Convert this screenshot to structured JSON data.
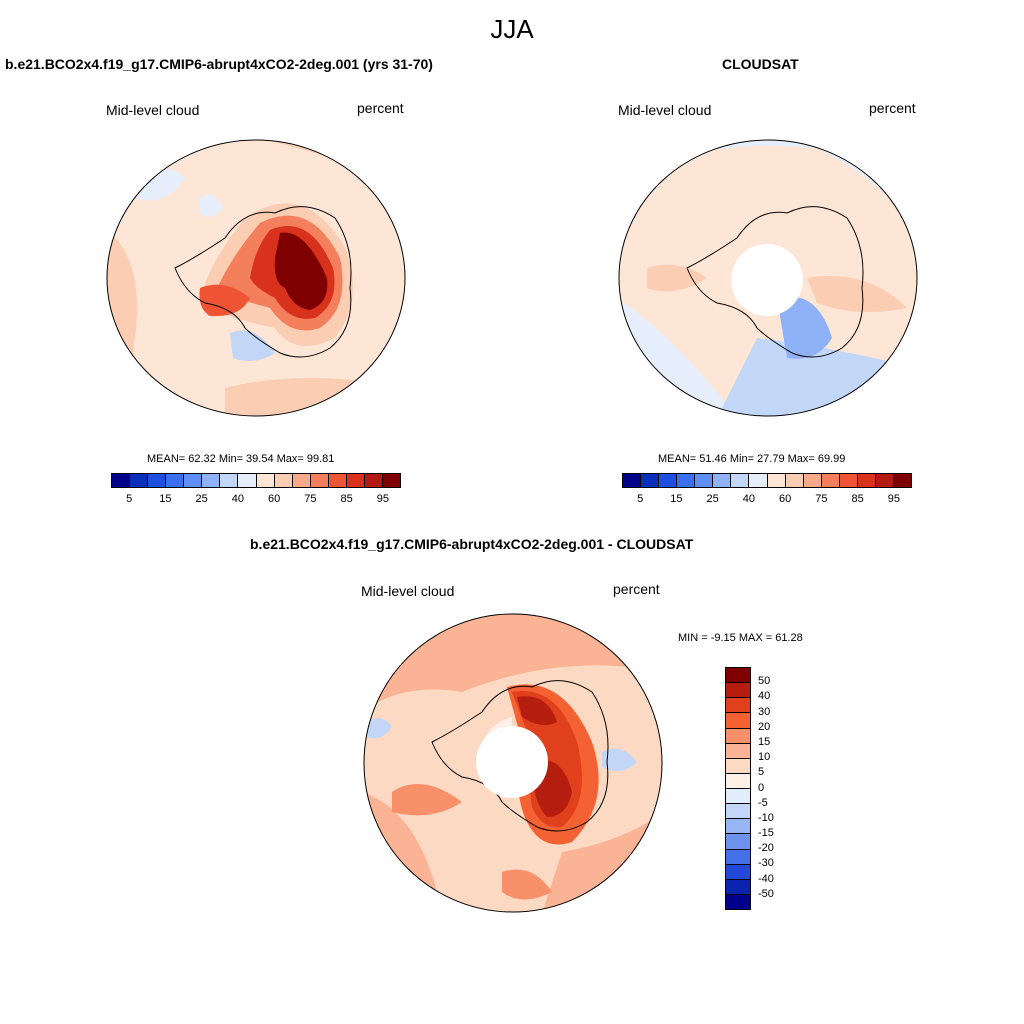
{
  "figure_title": "JJA",
  "panels": [
    {
      "title": "b.e21.BCO2x4.f19_g17.CMIP6-abrupt4xCO2-2deg.001 (yrs 31-70)",
      "variable": "Mid-level cloud",
      "units": "percent",
      "stats": "MEAN=  62.32  Min=  39.54  Max=  99.81",
      "colorbar_ticks": [
        "5",
        "15",
        "25",
        "40",
        "60",
        "75",
        "85",
        "95"
      ]
    },
    {
      "title": "CLOUDSAT",
      "variable": "Mid-level cloud",
      "units": "percent",
      "stats": "MEAN=  51.46  Min=  27.79  Max=  69.99",
      "colorbar_ticks": [
        "5",
        "15",
        "25",
        "40",
        "60",
        "75",
        "85",
        "95"
      ]
    },
    {
      "title": "b.e21.BCO2x4.f19_g17.CMIP6-abrupt4xCO2-2deg.001 - CLOUDSAT",
      "variable": "Mid-level cloud",
      "units": "percent",
      "stats": "MIN =  -9.15 MAX =  61.28",
      "colorbar_ticks": [
        "50",
        "40",
        "30",
        "20",
        "15",
        "10",
        "5",
        "0",
        "-5",
        "-10",
        "-15",
        "-20",
        "-30",
        "-40",
        "-50"
      ]
    }
  ],
  "colors": {
    "abs_scale": [
      "#00008b",
      "#0a2fb8",
      "#1f4fe0",
      "#3a6ff0",
      "#5f8ff5",
      "#8fb1f7",
      "#c2d6f7",
      "#e6eefb",
      "#fde6d6",
      "#fbcdb3",
      "#f7a98a",
      "#f47f5c",
      "#ef5534",
      "#d9321c",
      "#b21a12",
      "#7f0000"
    ],
    "diff_scale": [
      "#7f0000",
      "#b51d0f",
      "#e0401c",
      "#f46234",
      "#f8916a",
      "#fab394",
      "#fcd9c2",
      "#fdf0e6",
      "#e3ecfa",
      "#c3d6f7",
      "#97b6f3",
      "#6d93ef",
      "#4470ea",
      "#2248d8",
      "#0a24b0",
      "#00008b"
    ]
  }
}
